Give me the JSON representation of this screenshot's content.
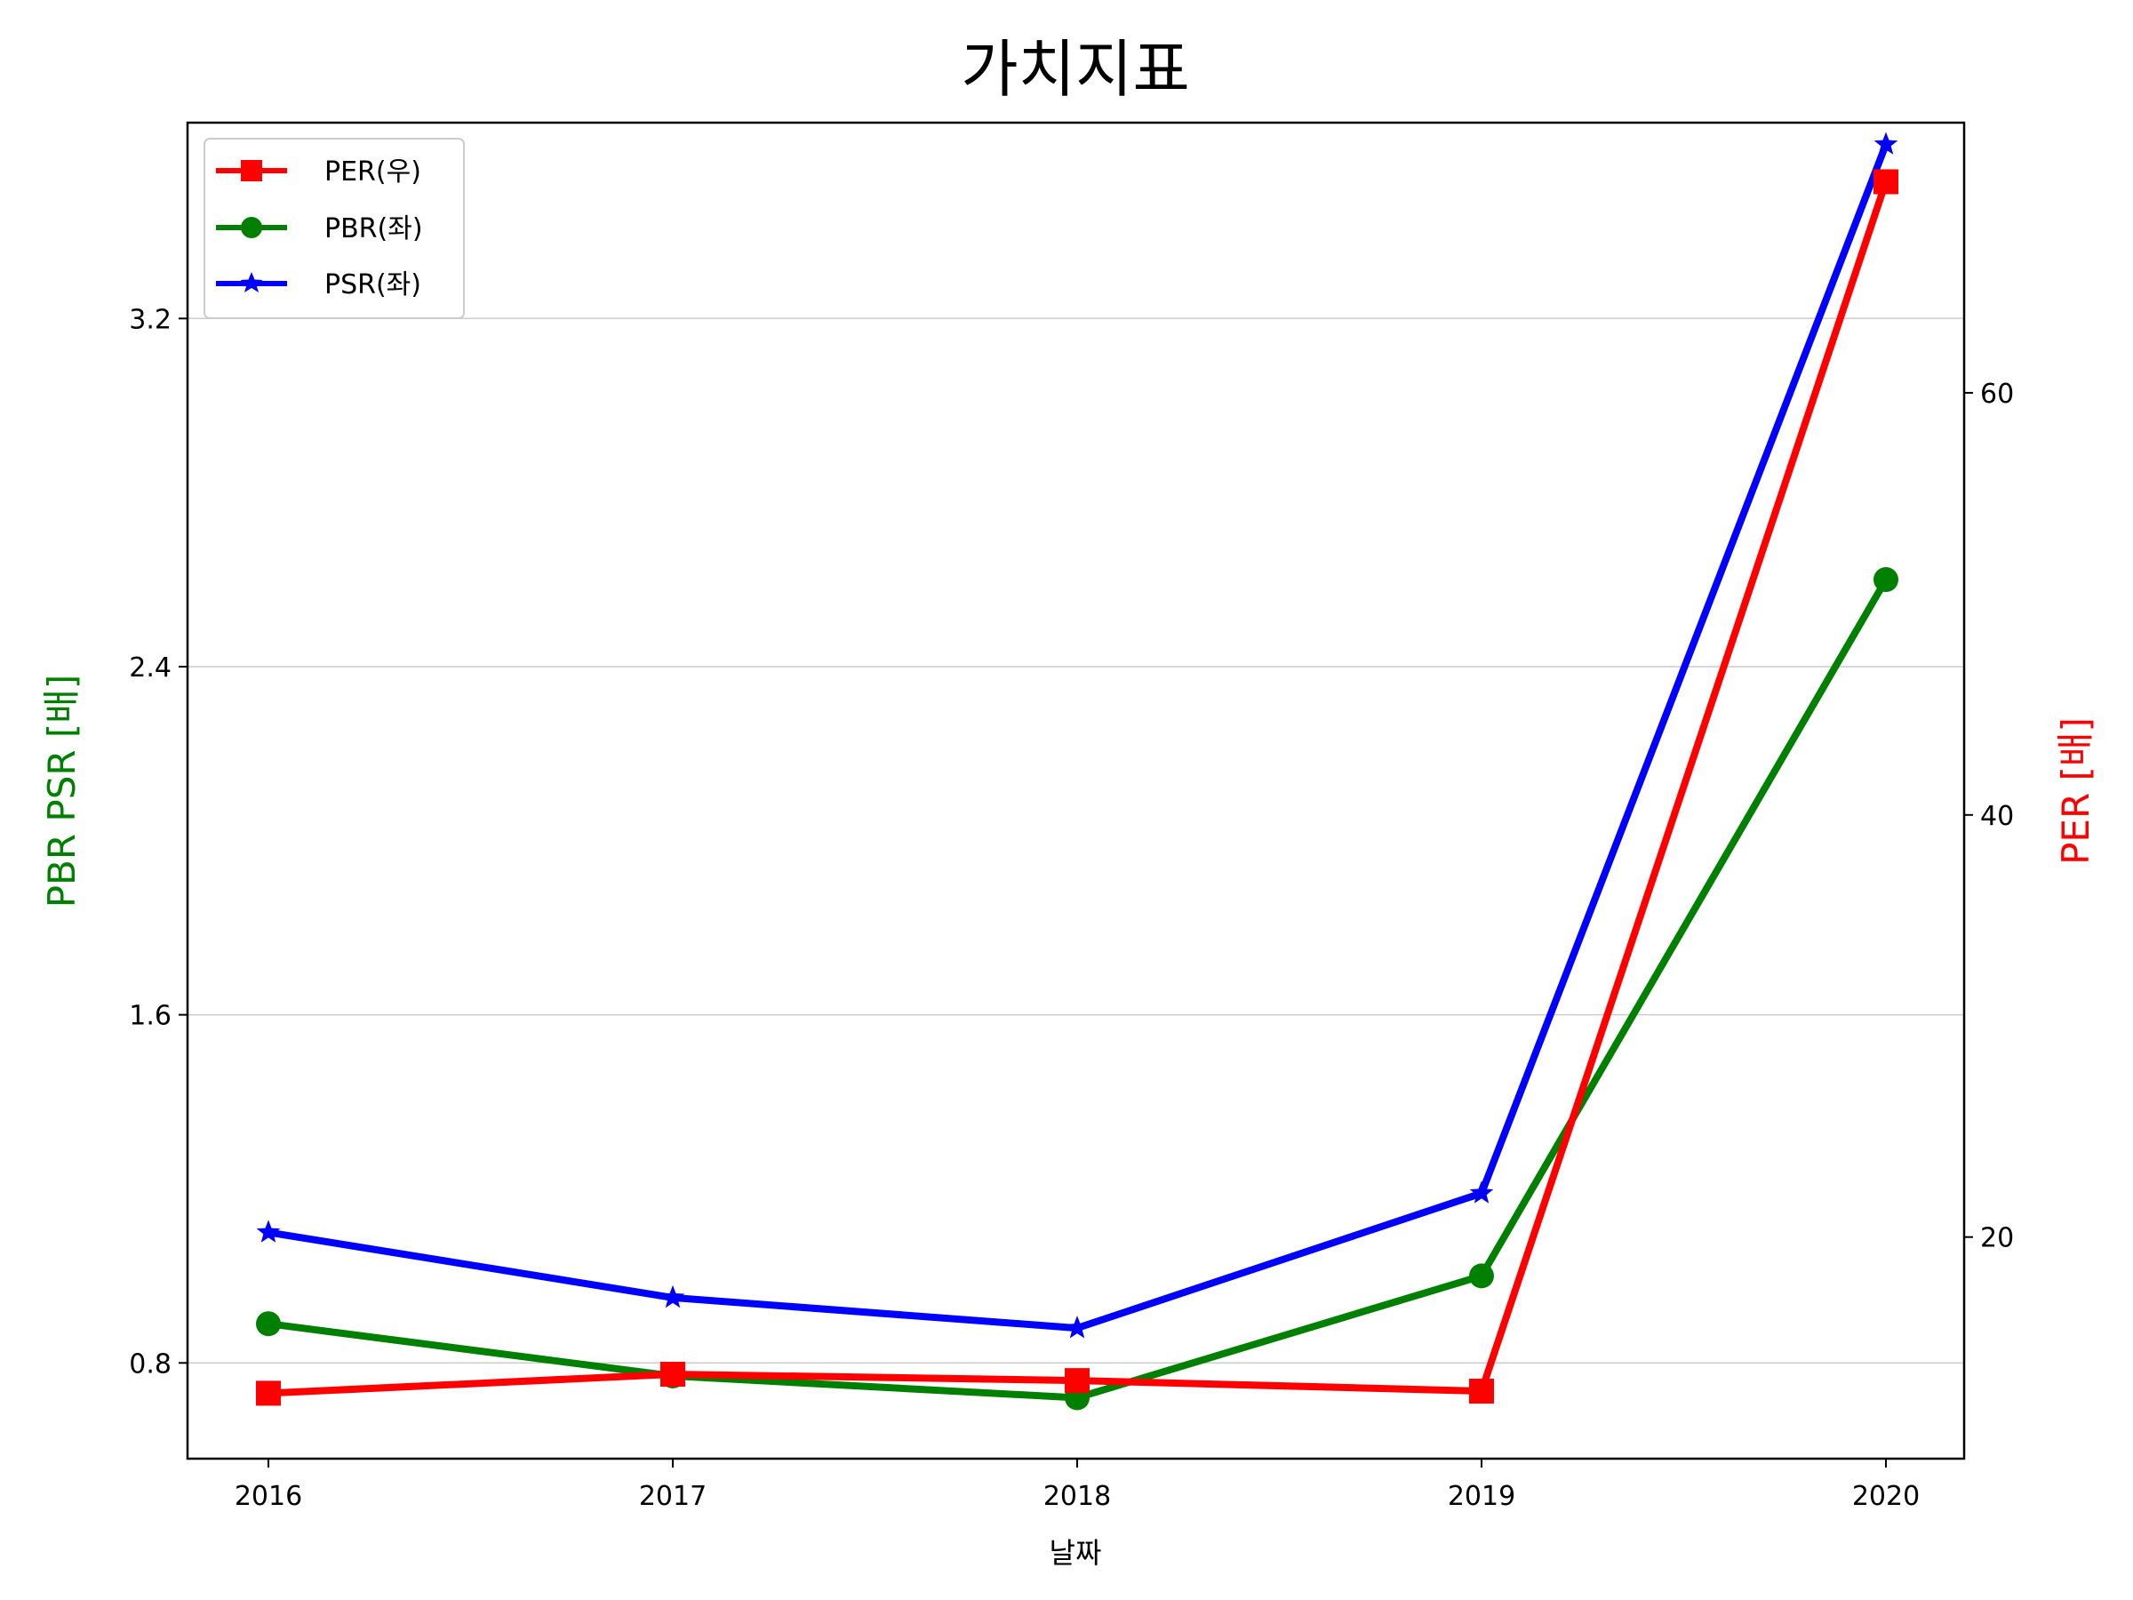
{
  "chart_data": {
    "type": "line",
    "title": "가치지표",
    "xlabel": "날짜",
    "ylabel_left": "PBR PSR [배]",
    "ylabel_right": "PER [배]",
    "categories": [
      "2016",
      "2017",
      "2018",
      "2019",
      "2020"
    ],
    "ylim_left": [
      0.58,
      3.65
    ],
    "ylim_right": [
      9.5,
      72.8
    ],
    "yticks_left": [
      "0.8",
      "1.6",
      "2.4",
      "3.2"
    ],
    "yticks_right": [
      "20",
      "40",
      "60"
    ],
    "grid": "horizontal-left",
    "legend_position": "upper-left",
    "series": [
      {
        "name": "PER(우)",
        "axis": "right",
        "color": "#ff0000",
        "marker": "square",
        "values": [
          12.6,
          13.5,
          13.2,
          12.7,
          70.0
        ]
      },
      {
        "name": "PBR(좌)",
        "axis": "left",
        "color": "#008000",
        "marker": "circle",
        "values": [
          0.89,
          0.77,
          0.72,
          1.0,
          2.6
        ]
      },
      {
        "name": "PSR(좌)",
        "axis": "left",
        "color": "#0000ff",
        "marker": "star",
        "values": [
          1.1,
          0.95,
          0.88,
          1.19,
          3.6
        ]
      }
    ],
    "colors": {
      "left_axis_label": "#008000",
      "right_axis_label": "#ff0000",
      "grid": "#cccccc"
    }
  }
}
